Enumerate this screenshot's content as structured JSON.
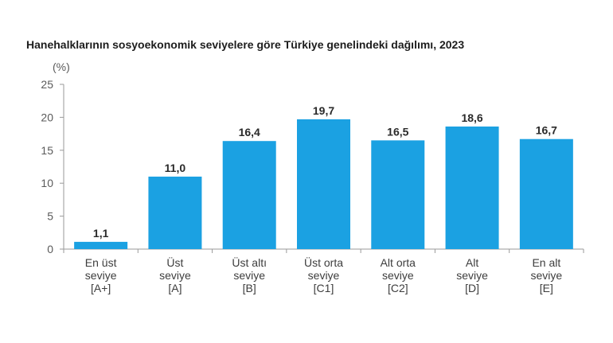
{
  "chart_data": {
    "type": "bar",
    "title": "Hanehalklarının sosyoekonomik seviyelere göre Türkiye genelindeki dağılımı, 2023",
    "ylabel": "(%)",
    "xlabel": "",
    "ylim": [
      0,
      25
    ],
    "yticks": [
      0,
      5,
      10,
      15,
      20,
      25
    ],
    "ytick_labels": [
      "0",
      "5",
      "10",
      "15",
      "20",
      "25"
    ],
    "grid": false,
    "legend": "none",
    "bar_color": "#1ba1e2",
    "categories": [
      [
        "En üst",
        "seviye",
        "[A+]"
      ],
      [
        "Üst",
        "seviye",
        "[A]"
      ],
      [
        "Üst altı",
        "seviye",
        "[B]"
      ],
      [
        "Üst orta",
        "seviye",
        "[C1]"
      ],
      [
        "Alt orta",
        "seviye",
        "[C2]"
      ],
      [
        "Alt",
        "seviye",
        "[D]"
      ],
      [
        "En alt",
        "seviye",
        "[E]"
      ]
    ],
    "values": [
      1.1,
      11.0,
      16.4,
      19.7,
      16.5,
      18.6,
      16.7
    ],
    "value_labels": [
      "1,1",
      "11,0",
      "16,4",
      "19,7",
      "16,5",
      "18,6",
      "16,7"
    ]
  }
}
